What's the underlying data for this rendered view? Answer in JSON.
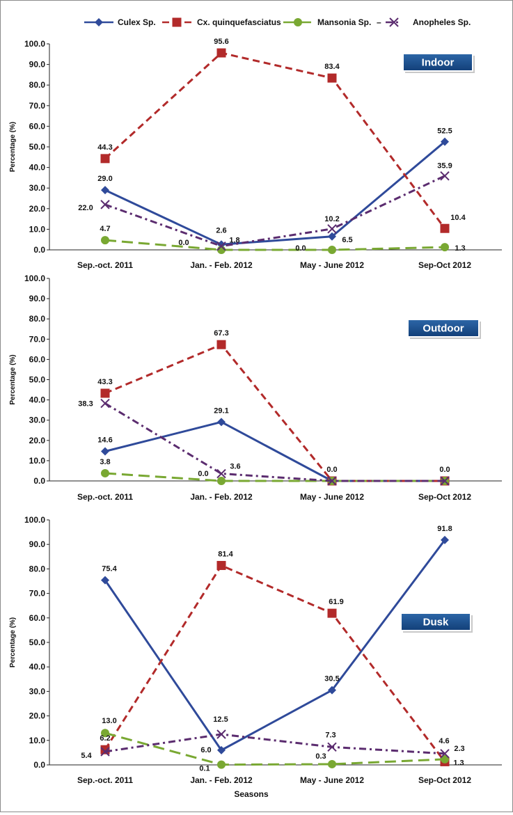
{
  "legend": [
    {
      "name": "Culex Sp.",
      "color": "#2F4A9A",
      "marker": "diamond",
      "dash": "solid"
    },
    {
      "name": "Cx. quinquefasciatus",
      "color": "#B22A2A",
      "marker": "square",
      "dash": "dashed"
    },
    {
      "name": "Mansonia Sp.",
      "color": "#79A832",
      "marker": "circle",
      "dash": "long-dash"
    },
    {
      "name": "Anopheles Sp.",
      "color": "#5B2C6F",
      "marker": "x",
      "dash": "dash-dot"
    }
  ],
  "legend_dash_after_mansonia": "–",
  "chart_data": [
    {
      "type": "line",
      "title": "Indoor",
      "xlabel": "",
      "ylabel": "Percentage (%)",
      "ylim": [
        0,
        100
      ],
      "yticks": [
        "0.0",
        "10.0",
        "20.0",
        "30.0",
        "40.0",
        "50.0",
        "60.0",
        "70.0",
        "80.0",
        "90.0",
        "100.0"
      ],
      "categories": [
        "Sep.-oct. 2011",
        "Jan. - Feb. 2012",
        "May - June 2012",
        "Sep-Oct 2012"
      ],
      "series": [
        {
          "name": "Culex Sp.",
          "values": [
            29.0,
            2.6,
            6.5,
            52.5
          ],
          "labels": [
            "29.0",
            "2.6",
            "6.5",
            "52.5"
          ]
        },
        {
          "name": "Cx. quinquefasciatus",
          "values": [
            44.3,
            95.6,
            83.4,
            10.4
          ],
          "labels": [
            "44.3",
            "95.6",
            "83.4",
            "10.4"
          ]
        },
        {
          "name": "Mansonia Sp.",
          "values": [
            4.7,
            0.0,
            0.0,
            1.3
          ],
          "labels": [
            "4.7",
            "0.0",
            "0.0",
            "1.3"
          ]
        },
        {
          "name": "Anopheles Sp.",
          "values": [
            22.0,
            1.8,
            10.2,
            35.9
          ],
          "labels": [
            "22.0",
            "1.8",
            "10.2",
            "35.9"
          ]
        }
      ]
    },
    {
      "type": "line",
      "title": "Outdoor",
      "xlabel": "",
      "ylabel": "Percentage (%)",
      "ylim": [
        0,
        100
      ],
      "yticks": [
        "0.0",
        "10.0",
        "20.0",
        "30.0",
        "40.0",
        "50.0",
        "60.0",
        "70.0",
        "80.0",
        "90.0",
        "100.0"
      ],
      "categories": [
        "Sep.-oct. 2011",
        "Jan. - Feb. 2012",
        "May - June 2012",
        "Sep-Oct 2012"
      ],
      "series": [
        {
          "name": "Culex Sp.",
          "values": [
            14.6,
            29.1,
            0.0,
            0.0
          ],
          "labels": [
            "14.6",
            "29.1",
            "",
            ""
          ]
        },
        {
          "name": "Cx. quinquefasciatus",
          "values": [
            43.3,
            67.3,
            0.0,
            0.0
          ],
          "labels": [
            "43.3",
            "67.3",
            "0.0",
            "0.0"
          ]
        },
        {
          "name": "Mansonia Sp.",
          "values": [
            3.8,
            0.0,
            0.0,
            0.0
          ],
          "labels": [
            "3.8",
            "0.0",
            "",
            ""
          ]
        },
        {
          "name": "Anopheles Sp.",
          "values": [
            38.3,
            3.6,
            0.0,
            0.0
          ],
          "labels": [
            "38.3",
            "3.6",
            "",
            ""
          ]
        }
      ]
    },
    {
      "type": "line",
      "title": "Dusk",
      "xlabel": "Seasons",
      "ylabel": "Percentage (%)",
      "ylim": [
        0,
        100
      ],
      "yticks": [
        "0.0",
        "10.0",
        "20.0",
        "30.0",
        "40.0",
        "50.0",
        "60.0",
        "70.0",
        "80.0",
        "90.0",
        "100.0"
      ],
      "categories": [
        "Sep.-oct. 2011",
        "Jan. - Feb. 2012",
        "May - June 2012",
        "Sep-Oct 2012"
      ],
      "series": [
        {
          "name": "Culex Sp.",
          "values": [
            75.4,
            6.0,
            30.5,
            91.8
          ],
          "labels": [
            "75.4",
            "6.0",
            "30.5",
            "91.8"
          ]
        },
        {
          "name": "Cx. quinquefasciatus",
          "values": [
            6.2,
            81.4,
            61.9,
            1.3
          ],
          "labels": [
            "6.2",
            "81.4",
            "61.9",
            "1.3"
          ]
        },
        {
          "name": "Mansonia Sp.",
          "values": [
            13.0,
            0.1,
            0.3,
            2.3
          ],
          "labels": [
            "13.0",
            "0.1",
            "0.3",
            "2.3"
          ]
        },
        {
          "name": "Anopheles Sp.",
          "values": [
            5.4,
            12.5,
            7.3,
            4.6
          ],
          "labels": [
            "5.4",
            "12.5",
            "7.3",
            "4.6"
          ]
        }
      ]
    }
  ]
}
